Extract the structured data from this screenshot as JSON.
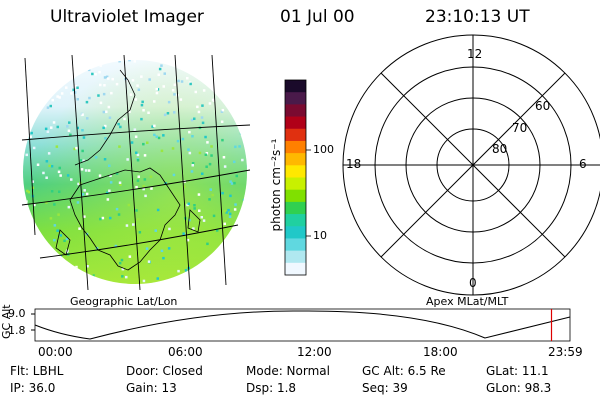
{
  "header": {
    "instrument": "Ultraviolet Imager",
    "date": "01 Jul 00",
    "time": "23:10:13 UT"
  },
  "colorbar": {
    "unit_label": "photon cm⁻²s⁻¹",
    "ticks": [
      "100",
      "10"
    ],
    "colors": [
      "#1a0a2a",
      "#4a1a4a",
      "#7a0a30",
      "#b00018",
      "#e03010",
      "#ff8000",
      "#ffb800",
      "#ffe800",
      "#c8f000",
      "#80e000",
      "#30d050",
      "#20d0a0",
      "#20c8c8",
      "#60d8e0",
      "#b0e8f0",
      "#f0f8ff"
    ]
  },
  "geo_panel": {
    "label": "Geographic Lat/Lon"
  },
  "polar_panel": {
    "label": "Apex MLat/MLT",
    "mlt_labels": {
      "top": "12",
      "left": "18",
      "right": "6",
      "bottom": "0"
    },
    "lat_labels": [
      "60",
      "70",
      "80"
    ]
  },
  "timeline": {
    "ylabel": "GC Alt",
    "y_ticks": [
      "9.0",
      "1.8"
    ],
    "x_ticks": [
      "00:00",
      "06:00",
      "12:00",
      "18:00",
      "23:59"
    ],
    "current_marker_color": "#dd0000",
    "current_time_hours": 23.17
  },
  "status": {
    "flt": "Flt: LBHL",
    "ip": "IP: 36.0",
    "door": "Door: Closed",
    "gain": "Gain: 13",
    "mode": "Mode: Normal",
    "dsp": "Dsp:    1.8",
    "gc_alt": "GC Alt: 6.5 Re",
    "seq": "Seq: 39",
    "glat": "GLat:  11.1",
    "glon": "GLon:  98.3"
  }
}
